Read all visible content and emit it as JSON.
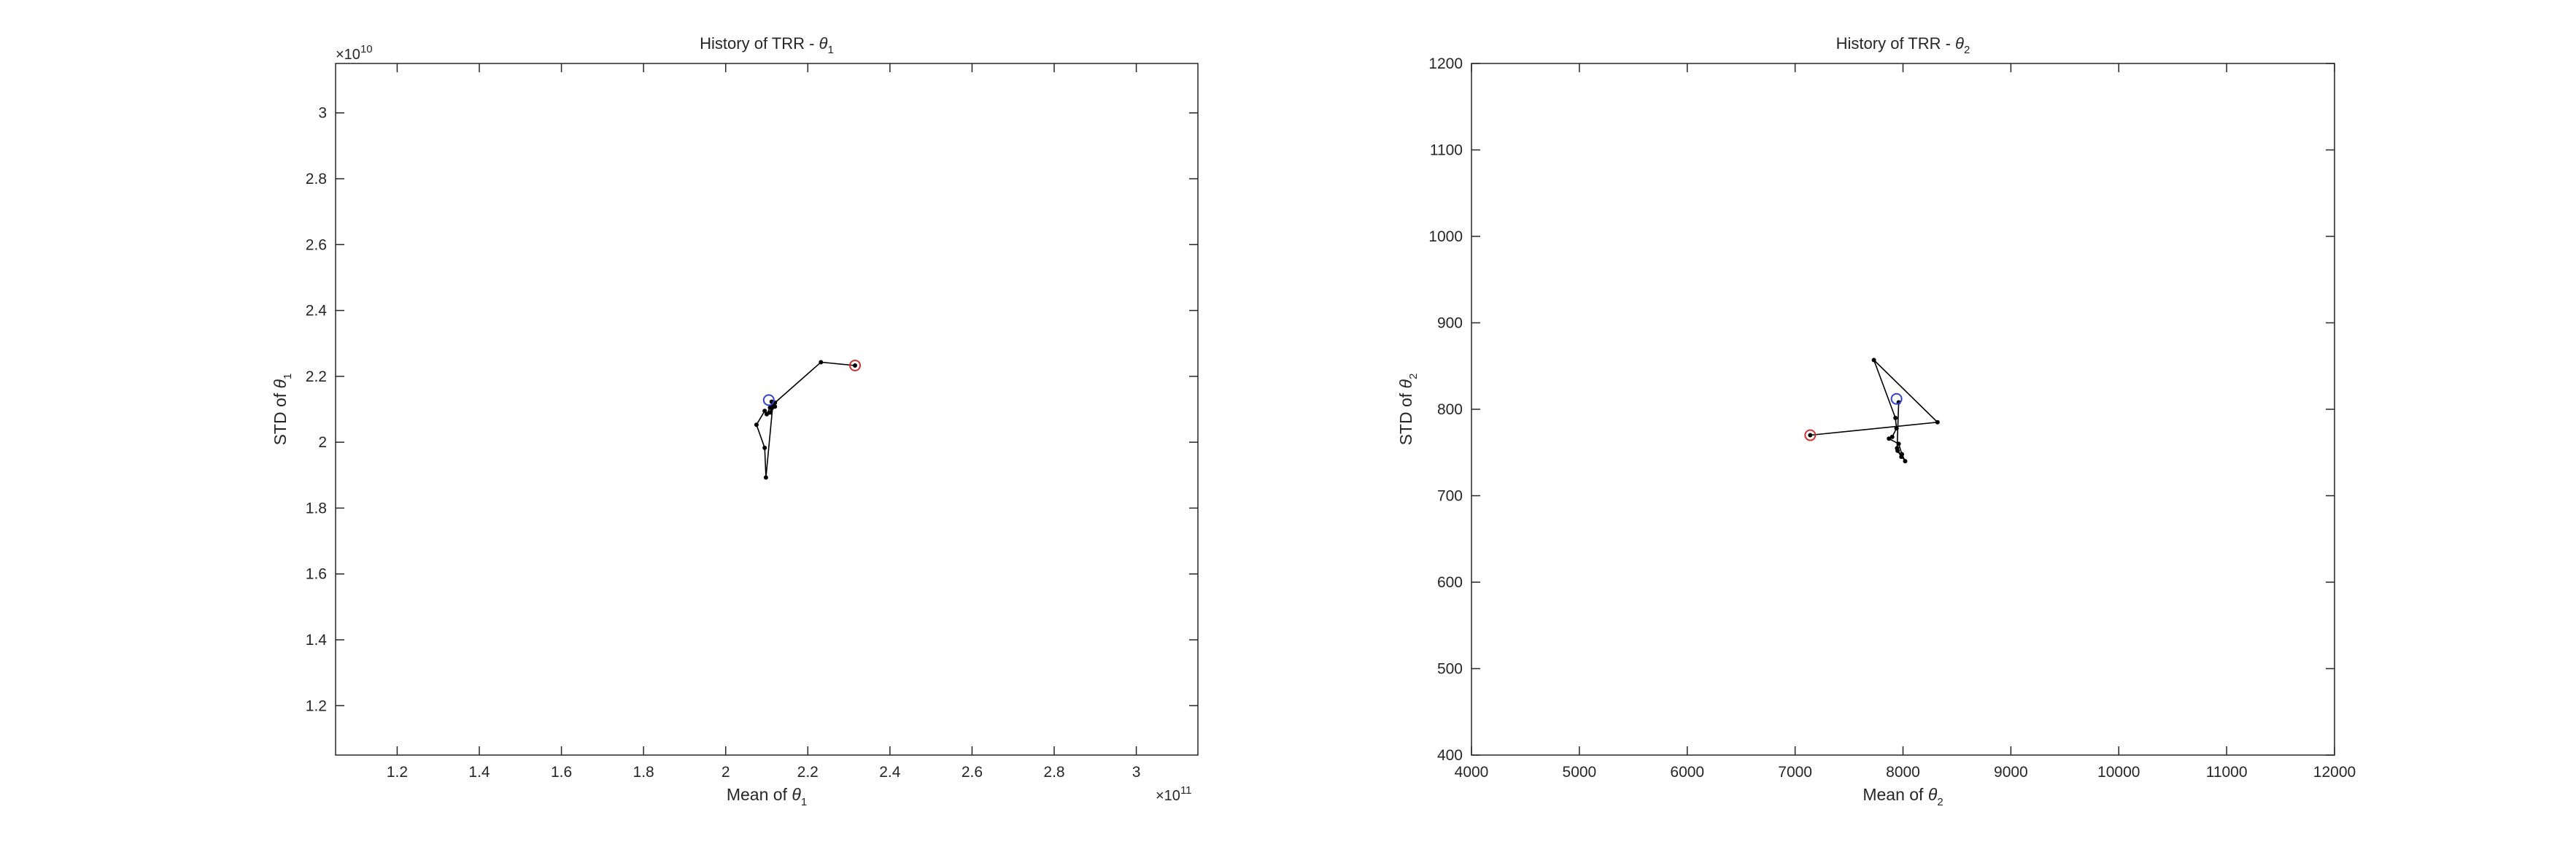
{
  "chart_data": [
    {
      "type": "line",
      "title": "History of TRR - ",
      "title_symbol": "θ",
      "title_sub": "1",
      "xlabel": "Mean of ",
      "xlabel_symbol": "θ",
      "xlabel_sub": "1",
      "ylabel": "STD of ",
      "ylabel_symbol": "θ",
      "ylabel_sub": "1",
      "x_exponent_label": "×10",
      "x_exponent": "11",
      "y_exponent_label": "×10",
      "y_exponent": "10",
      "x_scale": 100000000000,
      "y_scale": 10000000000,
      "xlim": [
        1.05,
        3.15
      ],
      "ylim": [
        1.05,
        3.15
      ],
      "xticks": [
        1.2,
        1.4,
        1.6,
        1.8,
        2,
        2.2,
        2.4,
        2.6,
        2.8,
        3
      ],
      "xtick_labels": [
        "1.2",
        "1.4",
        "1.6",
        "1.8",
        "2",
        "2.2",
        "2.4",
        "2.6",
        "2.8",
        "3"
      ],
      "yticks": [
        1.2,
        1.4,
        1.6,
        1.8,
        2,
        2.2,
        2.4,
        2.6,
        2.8,
        3
      ],
      "ytick_labels": [
        "1.2",
        "1.4",
        "1.6",
        "1.8",
        "2",
        "2.2",
        "2.4",
        "2.6",
        "2.8",
        "3"
      ],
      "grid": false,
      "series": [
        {
          "x": [
            2.315,
            2.232,
            2.12,
            2.108,
            2.1,
            2.095,
            2.075,
            2.095,
            2.098,
            2.115,
            2.108,
            2.12,
            2.112
          ],
          "y": [
            2.233,
            2.243,
            2.12,
            2.105,
            2.085,
            2.095,
            2.053,
            1.983,
            1.893,
            2.115,
            2.09,
            2.108,
            2.123
          ],
          "color": "#000000"
        }
      ],
      "start_marker": {
        "x": 2.315,
        "y": 2.233,
        "color": "#cc3333"
      },
      "end_marker": {
        "x": 2.105,
        "y": 2.128,
        "color": "#3344cc"
      }
    },
    {
      "type": "line",
      "title": "History of TRR - ",
      "title_symbol": "θ",
      "title_sub": "2",
      "xlabel": "Mean of ",
      "xlabel_symbol": "θ",
      "xlabel_sub": "2",
      "ylabel": "STD of ",
      "ylabel_symbol": "θ",
      "ylabel_sub": "2",
      "x_exponent_label": "",
      "x_exponent": "",
      "y_exponent_label": "",
      "y_exponent": "",
      "x_scale": 1,
      "y_scale": 1,
      "xlim": [
        4000,
        12000
      ],
      "ylim": [
        400,
        1200
      ],
      "xticks": [
        4000,
        5000,
        6000,
        7000,
        8000,
        9000,
        10000,
        11000,
        12000
      ],
      "xtick_labels": [
        "4000",
        "5000",
        "6000",
        "7000",
        "8000",
        "9000",
        "10000",
        "11000",
        "12000"
      ],
      "yticks": [
        400,
        500,
        600,
        700,
        800,
        900,
        1000,
        1100,
        1200
      ],
      "ytick_labels": [
        "400",
        "500",
        "600",
        "700",
        "800",
        "900",
        "1000",
        "1100",
        "1200"
      ],
      "grid": false,
      "series": [
        {
          "x": [
            7140,
            8320,
            7730,
            7930,
            7940,
            7900,
            7870,
            7960,
            7990,
            8020,
            7950,
            7985,
            7945,
            7960
          ],
          "y": [
            770,
            785,
            857,
            790,
            778,
            768,
            766,
            760,
            748,
            740,
            752,
            745,
            755,
            808
          ],
          "color": "#000000"
        }
      ],
      "start_marker": {
        "x": 7140,
        "y": 770,
        "color": "#cc3333"
      },
      "end_marker": {
        "x": 7940,
        "y": 812,
        "color": "#3344cc"
      }
    }
  ]
}
